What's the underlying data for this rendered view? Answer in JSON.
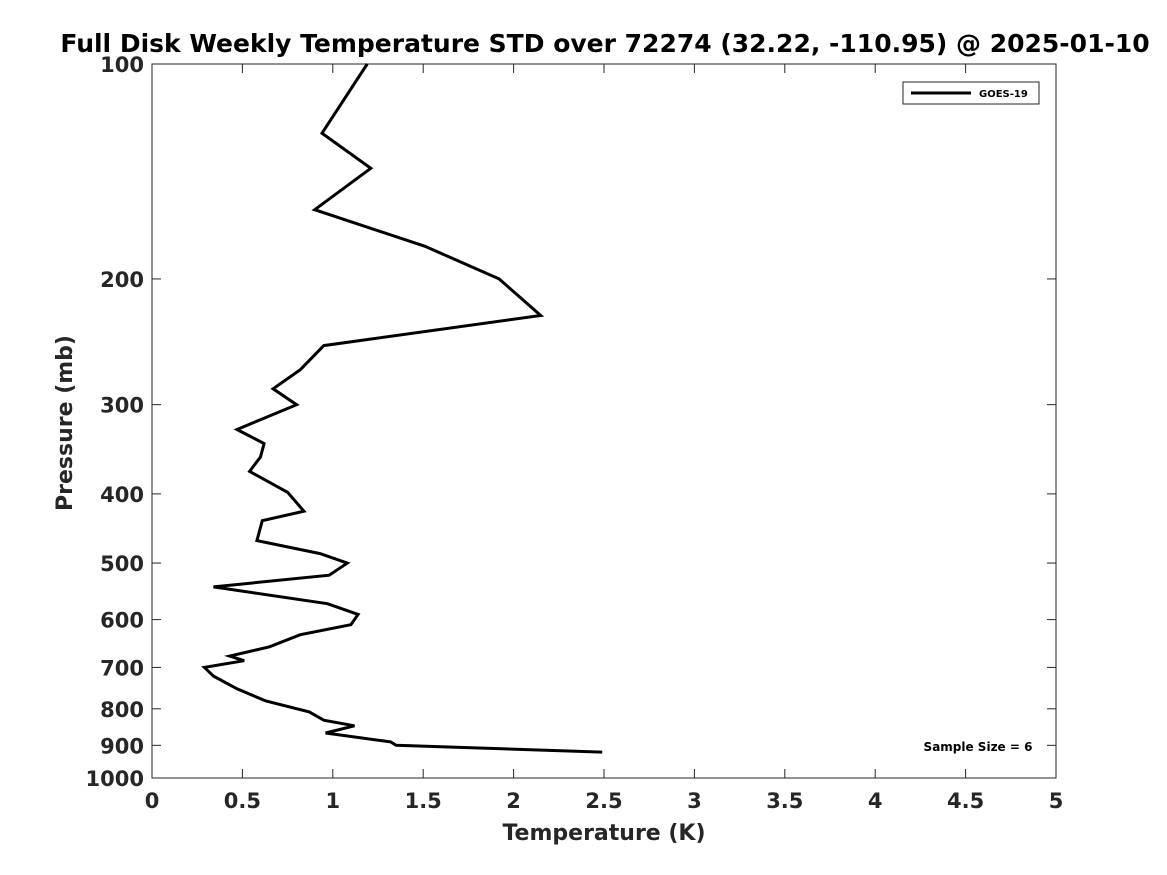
{
  "chart_data": {
    "type": "line",
    "title": "Full Disk Weekly Temperature STD over 72274 (32.22, -110.95) @ 2025-01-10",
    "xlabel": "Temperature (K)",
    "ylabel": "Pressure (mb)",
    "xlim": [
      0,
      5
    ],
    "ylim": [
      100,
      1000
    ],
    "y_scale": "log",
    "y_reversed": true,
    "grid": false,
    "legend_position": "top-right",
    "x_ticks": [
      "0",
      "0.5",
      "1",
      "1.5",
      "2",
      "2.5",
      "3",
      "3.5",
      "4",
      "4.5",
      "5"
    ],
    "y_ticks": [
      "100",
      "200",
      "300",
      "400",
      "500",
      "600",
      "700",
      "800",
      "900",
      "1000"
    ],
    "series": [
      {
        "name": "GOES-19",
        "color": "#000000",
        "points": [
          [
            1.19,
            100
          ],
          [
            0.94,
            125
          ],
          [
            1.21,
            140
          ],
          [
            0.9,
            160
          ],
          [
            1.51,
            180
          ],
          [
            1.92,
            200
          ],
          [
            2.15,
            225
          ],
          [
            0.95,
            248
          ],
          [
            0.82,
            268
          ],
          [
            0.67,
            285
          ],
          [
            0.8,
            300
          ],
          [
            0.47,
            325
          ],
          [
            0.62,
            340
          ],
          [
            0.6,
            355
          ],
          [
            0.54,
            372
          ],
          [
            0.75,
            398
          ],
          [
            0.84,
            423
          ],
          [
            0.61,
            436
          ],
          [
            0.58,
            465
          ],
          [
            0.93,
            485
          ],
          [
            1.08,
            500
          ],
          [
            0.98,
            520
          ],
          [
            0.34,
            540
          ],
          [
            0.97,
            570
          ],
          [
            1.14,
            590
          ],
          [
            1.1,
            610
          ],
          [
            0.82,
            630
          ],
          [
            0.65,
            655
          ],
          [
            0.43,
            675
          ],
          [
            0.51,
            685
          ],
          [
            0.29,
            700
          ],
          [
            0.34,
            720
          ],
          [
            0.47,
            750
          ],
          [
            0.63,
            780
          ],
          [
            0.87,
            808
          ],
          [
            0.95,
            830
          ],
          [
            1.12,
            845
          ],
          [
            0.96,
            865
          ],
          [
            1.32,
            890
          ],
          [
            1.35,
            900
          ],
          [
            2.49,
            920
          ]
        ]
      }
    ],
    "annotation": "Sample Size = 6"
  }
}
